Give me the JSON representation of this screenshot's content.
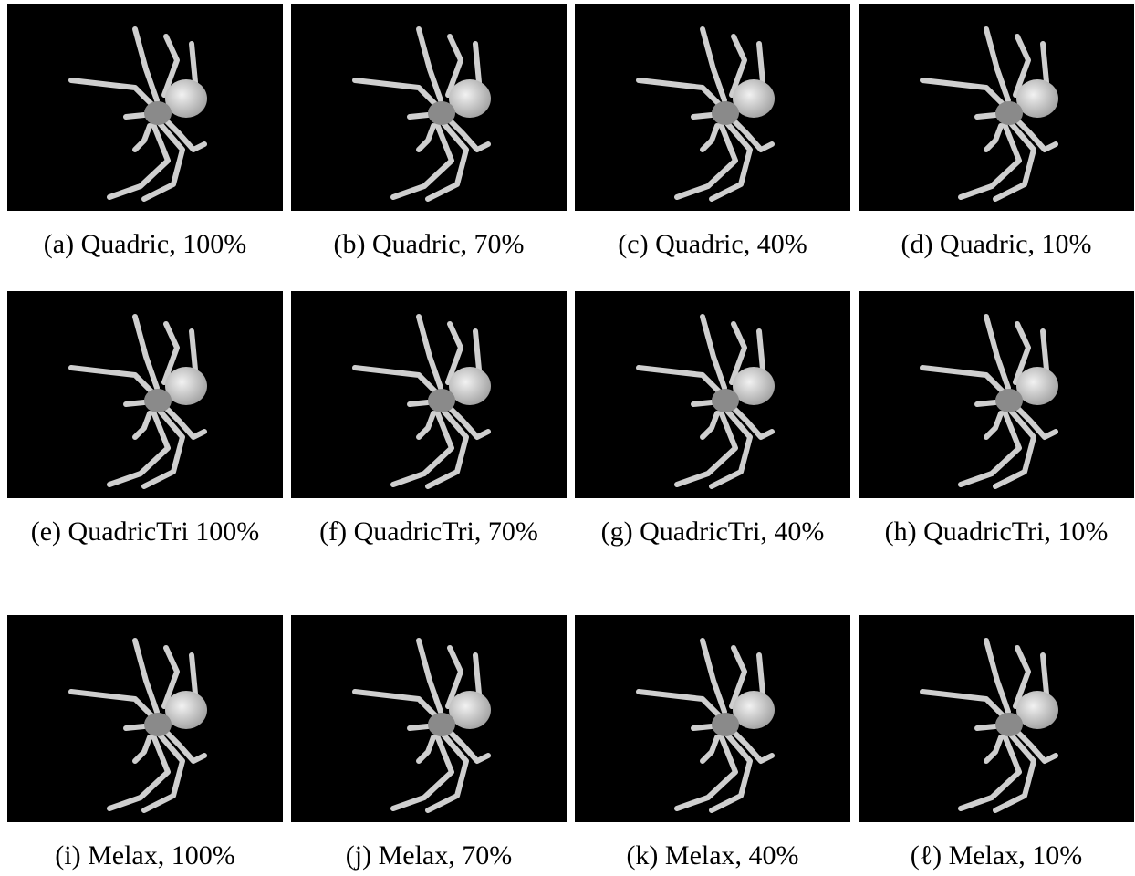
{
  "figure": {
    "panels": [
      {
        "caption": "(a) Quadric, 100%"
      },
      {
        "caption": "(b) Quadric, 70%"
      },
      {
        "caption": "(c) Quadric, 40%"
      },
      {
        "caption": "(d) Quadric, 10%"
      },
      {
        "caption": "(e) QuadricTri 100%"
      },
      {
        "caption": "(f) QuadricTri, 70%"
      },
      {
        "caption": "(g) QuadricTri, 40%"
      },
      {
        "caption": "(h) QuadricTri, 10%"
      },
      {
        "caption": "(i) Melax, 100%"
      },
      {
        "caption": "(j) Melax, 70%"
      },
      {
        "caption": "(k) Melax, 40%"
      },
      {
        "caption": "(ℓ) Melax, 10%"
      }
    ]
  }
}
